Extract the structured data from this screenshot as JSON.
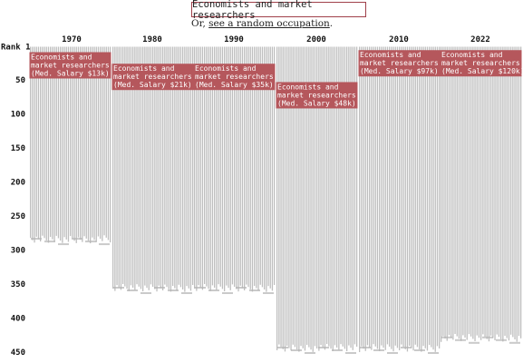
{
  "search": {
    "value": "Economists and market researchers"
  },
  "random": {
    "prefix": "Or, ",
    "link": "see a random occupation",
    "suffix": "."
  },
  "chart_data": {
    "type": "bar",
    "title": "",
    "xlabel": "",
    "ylabel": "",
    "y_axis": {
      "first_label": "Rank 1",
      "ticks": [
        50,
        100,
        150,
        200,
        250,
        300,
        350,
        400,
        450
      ],
      "ylim": [
        1,
        450
      ],
      "inverted": true
    },
    "years": [
      "1970",
      "1980",
      "1990",
      "2000",
      "2010",
      "2022"
    ],
    "occupation_counts": [
      290,
      362,
      362,
      450,
      450,
      435
    ],
    "highlight": {
      "name_line1": "Economists and",
      "name_line2": "market researchers",
      "ranks": [
        21,
        38,
        38,
        65,
        18,
        18
      ],
      "salary_labels": [
        "(Med. Salary $13k)",
        "(Med. Salary $21k)",
        "(Med. Salary $35k)",
        "(Med. Salary $48k)",
        "(Med. Salary $97k)",
        "(Med. Salary $120k)"
      ]
    }
  },
  "colors": {
    "background_text": "#b3b3b3",
    "highlight": "#b5575c",
    "highlight_text": "#ffffff",
    "search_border": "#a0404a"
  }
}
